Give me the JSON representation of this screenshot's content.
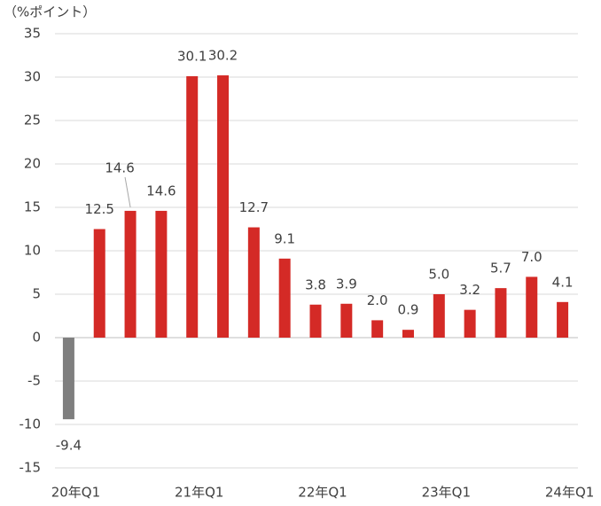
{
  "chart_data": {
    "type": "bar",
    "y_label": "（%ポイント）",
    "categories": [
      "20年Q1",
      null,
      null,
      null,
      "21年Q1",
      null,
      null,
      null,
      "22年Q1",
      null,
      null,
      null,
      "23年Q1",
      null,
      null,
      null,
      "24年Q1"
    ],
    "values": [
      -9.4,
      12.5,
      14.6,
      14.6,
      30.1,
      30.2,
      12.7,
      9.1,
      3.8,
      3.9,
      2.0,
      0.9,
      5.0,
      3.2,
      5.7,
      7.0,
      4.1
    ],
    "value_labels": [
      "-9.4",
      "12.5",
      "14.6",
      "14.6",
      "30.1",
      "30.2",
      "12.7",
      "9.1",
      "3.8",
      "3.9",
      "2.0",
      "0.9",
      "5.0",
      "3.2",
      "5.7",
      "7.0",
      "4.1"
    ],
    "colors": [
      "#7f7f7f",
      "#d42a26",
      "#d42a26",
      "#d42a26",
      "#d42a26",
      "#d42a26",
      "#d42a26",
      "#d42a26",
      "#d42a26",
      "#d42a26",
      "#d42a26",
      "#d42a26",
      "#d42a26",
      "#d42a26",
      "#d42a26",
      "#d42a26",
      "#d42a26"
    ],
    "ylim": [
      -15,
      35
    ],
    "yticks": [
      -15,
      -10,
      -5,
      0,
      5,
      10,
      15,
      20,
      25,
      30,
      35
    ],
    "grid": true
  }
}
